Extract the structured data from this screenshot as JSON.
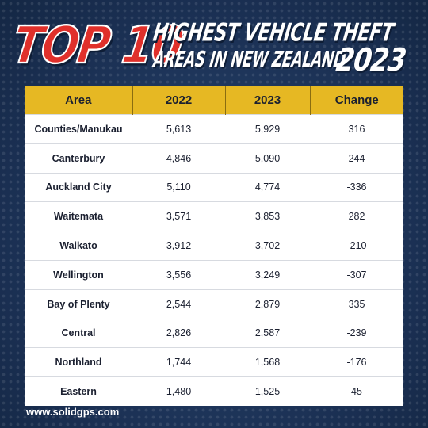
{
  "title": {
    "top10": "TOP 10",
    "line1": "HIGHEST VEHICLE THEFT",
    "line2": "AREAS IN NEW ZEALAND",
    "year": "2023"
  },
  "table": {
    "headers": [
      "Area",
      "2022",
      "2023",
      "Change"
    ],
    "rows": [
      [
        "Counties/Manukau",
        "5,613",
        "5,929",
        "316"
      ],
      [
        "Canterbury",
        "4,846",
        "5,090",
        "244"
      ],
      [
        "Auckland City",
        "5,110",
        "4,774",
        "-336"
      ],
      [
        "Waitemata",
        "3,571",
        "3,853",
        "282"
      ],
      [
        "Waikato",
        "3,912",
        "3,702",
        "-210"
      ],
      [
        "Wellington",
        "3,556",
        "3,249",
        "-307"
      ],
      [
        "Bay of Plenty",
        "2,544",
        "2,879",
        "335"
      ],
      [
        "Central",
        "2,826",
        "2,587",
        "-239"
      ],
      [
        "Northland",
        "1,744",
        "1,568",
        "-176"
      ],
      [
        "Eastern",
        "1,480",
        "1,525",
        "45"
      ]
    ]
  },
  "footer": {
    "website": "www.solidgps.com"
  },
  "colors": {
    "background": "#1d3458",
    "header": "#e6b823",
    "accent_red": "#e0302b",
    "text_dark": "#1b2030"
  }
}
